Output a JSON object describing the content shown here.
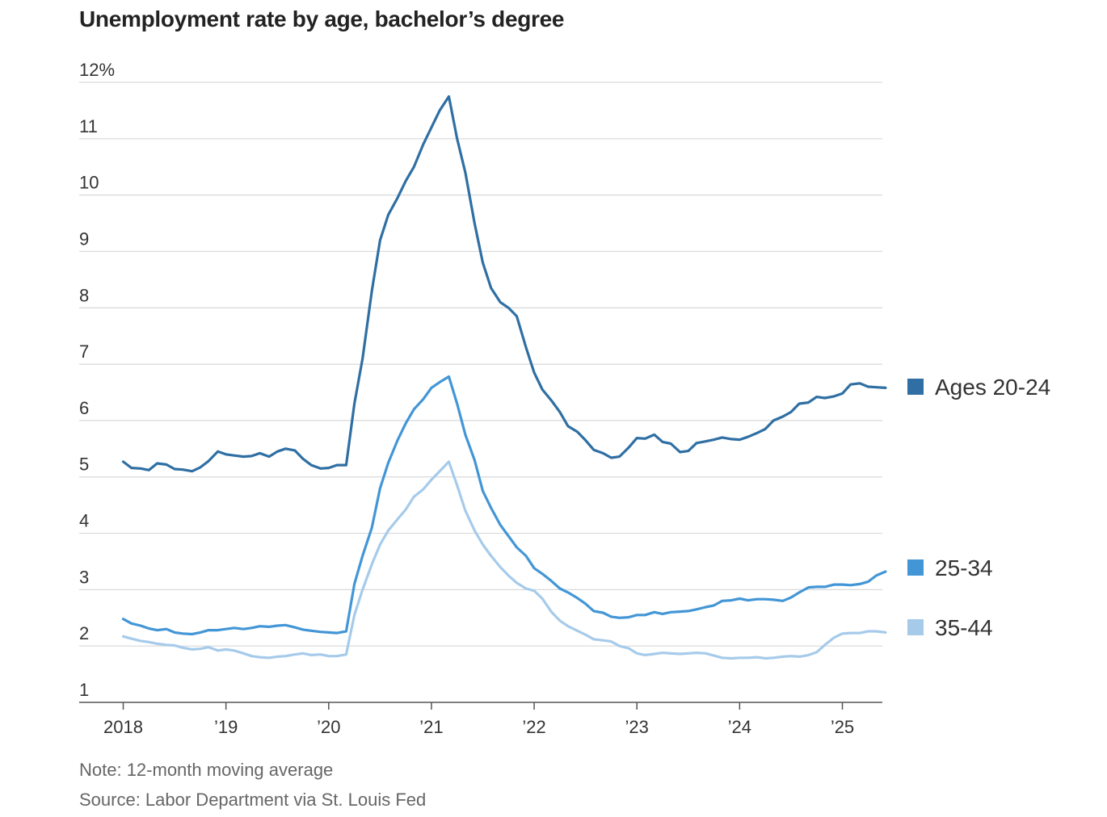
{
  "title": "Unemployment rate by age, bachelor’s degree",
  "note": "Note: 12-month moving average",
  "source": "Source: Labor Department via St. Louis Fed",
  "chart_data": {
    "type": "line",
    "title": "Unemployment rate by age, bachelor’s degree",
    "xlabel": "",
    "ylabel": "",
    "ylim": [
      1,
      12
    ],
    "xlim": [
      2018.0,
      2025.42
    ],
    "y_ticks": [
      1,
      2,
      3,
      4,
      5,
      6,
      7,
      8,
      9,
      10,
      11,
      12
    ],
    "y_tick_labels": [
      "1",
      "2",
      "3",
      "4",
      "5",
      "6",
      "7",
      "8",
      "9",
      "10",
      "11",
      "12%"
    ],
    "x_ticks": [
      2018,
      2019,
      2020,
      2021,
      2022,
      2023,
      2024,
      2025
    ],
    "x_tick_labels": [
      "2018",
      "’19",
      "’20",
      "’21",
      "’22",
      "’23",
      "’24",
      "’25"
    ],
    "grid": true,
    "legend": "right, at line ends",
    "x": [
      2018.0,
      2018.08,
      2018.17,
      2018.25,
      2018.33,
      2018.42,
      2018.5,
      2018.58,
      2018.67,
      2018.75,
      2018.83,
      2018.92,
      2019.0,
      2019.08,
      2019.17,
      2019.25,
      2019.33,
      2019.42,
      2019.5,
      2019.58,
      2019.67,
      2019.75,
      2019.83,
      2019.92,
      2020.0,
      2020.08,
      2020.17,
      2020.25,
      2020.33,
      2020.42,
      2020.5,
      2020.58,
      2020.67,
      2020.75,
      2020.83,
      2020.92,
      2021.0,
      2021.08,
      2021.17,
      2021.25,
      2021.33,
      2021.42,
      2021.5,
      2021.58,
      2021.67,
      2021.75,
      2021.83,
      2021.92,
      2022.0,
      2022.08,
      2022.17,
      2022.25,
      2022.33,
      2022.42,
      2022.5,
      2022.58,
      2022.67,
      2022.75,
      2022.83,
      2022.92,
      2023.0,
      2023.08,
      2023.17,
      2023.25,
      2023.33,
      2023.42,
      2023.5,
      2023.58,
      2023.67,
      2023.75,
      2023.83,
      2023.92,
      2024.0,
      2024.08,
      2024.17,
      2024.25,
      2024.33,
      2024.42,
      2024.5,
      2024.58,
      2024.67,
      2024.75,
      2024.83,
      2024.92,
      2025.0,
      2025.08,
      2025.17,
      2025.25,
      2025.33,
      2025.42
    ],
    "series": [
      {
        "name": "Ages 20-24",
        "color": "#2f6fa3",
        "values": [
          5.27,
          5.16,
          5.15,
          5.12,
          5.24,
          5.22,
          5.14,
          5.13,
          5.1,
          5.17,
          5.28,
          5.45,
          5.4,
          5.38,
          5.36,
          5.37,
          5.42,
          5.36,
          5.45,
          5.5,
          5.47,
          5.32,
          5.21,
          5.15,
          5.16,
          5.21,
          5.21,
          6.3,
          7.1,
          8.3,
          9.2,
          9.65,
          9.95,
          10.25,
          10.5,
          10.9,
          11.2,
          11.5,
          11.75,
          11.0,
          10.4,
          9.5,
          8.8,
          8.35,
          8.1,
          8.0,
          7.85,
          7.3,
          6.85,
          6.55,
          6.35,
          6.15,
          5.9,
          5.8,
          5.65,
          5.48,
          5.42,
          5.34,
          5.36,
          5.52,
          5.69,
          5.68,
          5.75,
          5.62,
          5.59,
          5.44,
          5.46,
          5.6,
          5.63,
          5.66,
          5.7,
          5.67,
          5.66,
          5.71,
          5.78,
          5.85,
          6.0,
          6.07,
          6.15,
          6.3,
          6.32,
          6.42,
          6.4,
          6.43,
          6.48,
          6.64,
          6.66,
          6.6,
          6.59,
          6.58
        ]
      },
      {
        "name": "25-34",
        "color": "#4396d6",
        "values": [
          2.48,
          2.4,
          2.36,
          2.31,
          2.28,
          2.3,
          2.24,
          2.22,
          2.21,
          2.24,
          2.28,
          2.28,
          2.3,
          2.32,
          2.3,
          2.32,
          2.35,
          2.34,
          2.36,
          2.37,
          2.33,
          2.29,
          2.27,
          2.25,
          2.24,
          2.23,
          2.26,
          3.1,
          3.6,
          4.1,
          4.8,
          5.25,
          5.65,
          5.95,
          6.2,
          6.38,
          6.58,
          6.68,
          6.78,
          6.3,
          5.75,
          5.3,
          4.75,
          4.45,
          4.15,
          3.95,
          3.75,
          3.6,
          3.38,
          3.28,
          3.15,
          3.02,
          2.95,
          2.85,
          2.75,
          2.62,
          2.59,
          2.52,
          2.5,
          2.51,
          2.55,
          2.55,
          2.6,
          2.57,
          2.6,
          2.61,
          2.62,
          2.65,
          2.69,
          2.72,
          2.8,
          2.81,
          2.84,
          2.81,
          2.83,
          2.83,
          2.82,
          2.8,
          2.86,
          2.95,
          3.04,
          3.05,
          3.05,
          3.09,
          3.09,
          3.08,
          3.1,
          3.14,
          3.25,
          3.32
        ]
      },
      {
        "name": "35-44",
        "color": "#a6cbea",
        "values": [
          2.17,
          2.13,
          2.09,
          2.07,
          2.04,
          2.02,
          2.01,
          1.97,
          1.94,
          1.95,
          1.98,
          1.92,
          1.94,
          1.92,
          1.87,
          1.82,
          1.8,
          1.79,
          1.81,
          1.82,
          1.85,
          1.87,
          1.84,
          1.85,
          1.82,
          1.82,
          1.85,
          2.55,
          3.0,
          3.45,
          3.8,
          4.05,
          4.25,
          4.42,
          4.65,
          4.78,
          4.95,
          5.1,
          5.27,
          4.85,
          4.4,
          4.05,
          3.8,
          3.6,
          3.4,
          3.25,
          3.12,
          3.02,
          2.98,
          2.84,
          2.6,
          2.45,
          2.35,
          2.27,
          2.2,
          2.12,
          2.1,
          2.08,
          2.0,
          1.96,
          1.87,
          1.84,
          1.86,
          1.88,
          1.87,
          1.86,
          1.87,
          1.88,
          1.87,
          1.83,
          1.79,
          1.78,
          1.79,
          1.79,
          1.8,
          1.78,
          1.79,
          1.81,
          1.82,
          1.81,
          1.84,
          1.89,
          2.02,
          2.15,
          2.22,
          2.23,
          2.23,
          2.26,
          2.26,
          2.24
        ]
      }
    ]
  }
}
